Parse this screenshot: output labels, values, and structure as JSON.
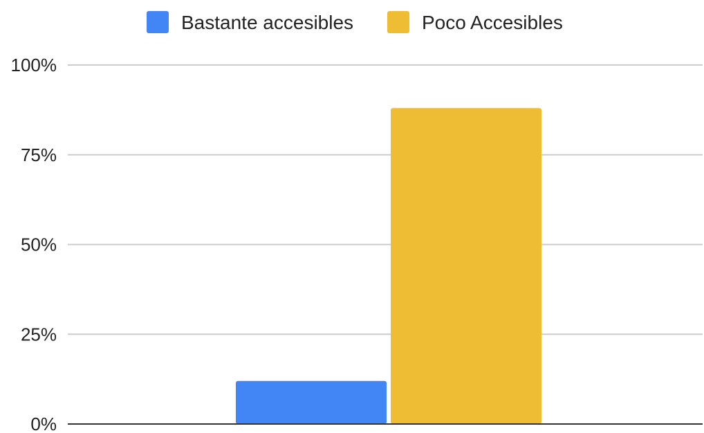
{
  "chart_data": {
    "type": "bar",
    "categories": [
      ""
    ],
    "series": [
      {
        "name": "Bastante accesibles",
        "color": "#4285f4",
        "values": [
          12
        ]
      },
      {
        "name": "Poco Accesibles",
        "color": "#efbd33",
        "values": [
          88
        ]
      }
    ],
    "ylim": [
      0,
      100
    ],
    "y_ticks": [
      "0%",
      "25%",
      "50%",
      "75%",
      "100%"
    ],
    "y_tick_values": [
      0,
      25,
      50,
      75,
      100
    ],
    "grid": true,
    "legend_position": "top-center"
  }
}
